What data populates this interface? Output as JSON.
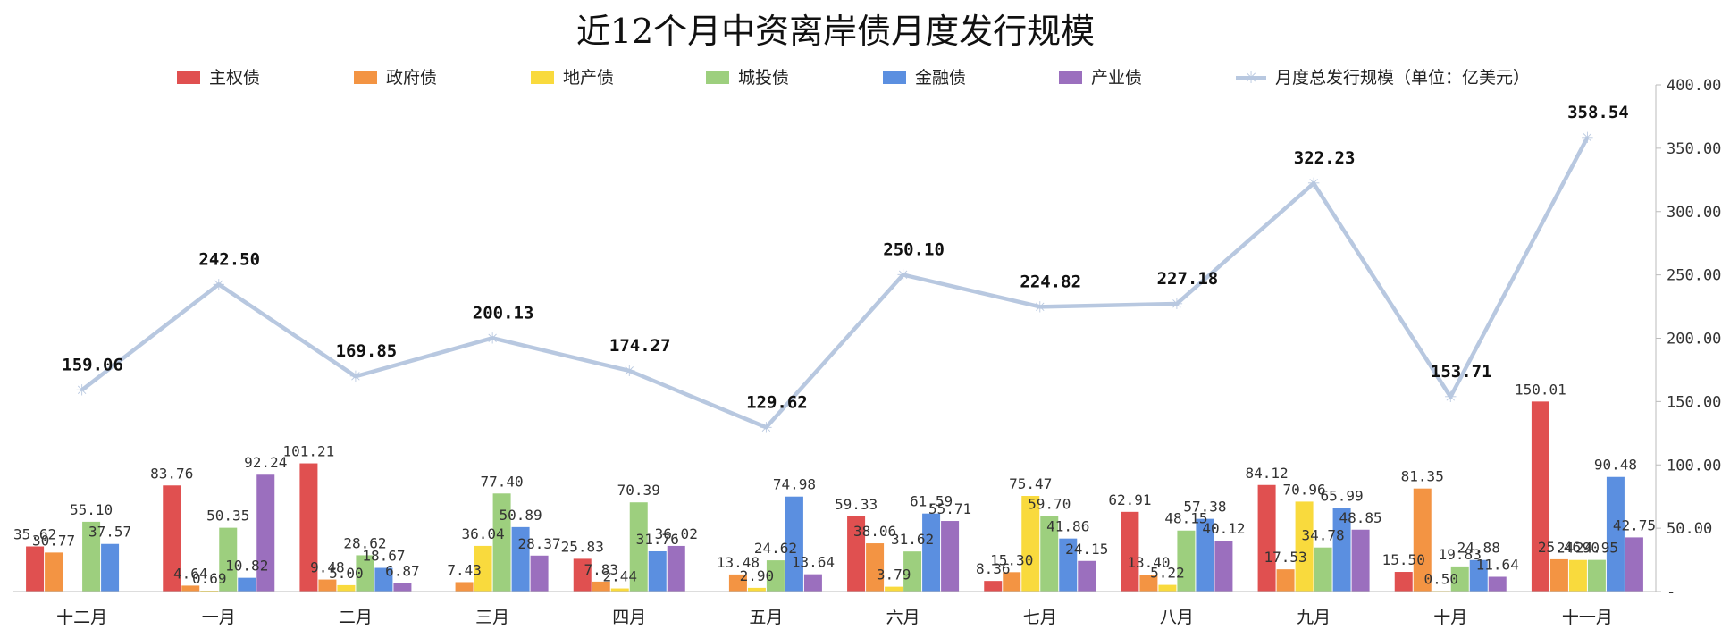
{
  "chart_data": {
    "type": "bar",
    "title": "近12个月中资离岸债月度发行规模",
    "categories": [
      "十二月",
      "一月",
      "二月",
      "三月",
      "四月",
      "五月",
      "六月",
      "七月",
      "八月",
      "九月",
      "十月",
      "十一月"
    ],
    "series": [
      {
        "name": "主权债",
        "color": "#e05050",
        "values": [
          35.62,
          83.76,
          101.21,
          null,
          25.83,
          null,
          59.33,
          8.36,
          62.91,
          84.12,
          15.5,
          150.01
        ],
        "labels": [
          "35.62",
          "83.76",
          "101.21",
          "",
          "25.83",
          "",
          "59.33",
          "8.36",
          "62.91",
          "84.12",
          "15.50",
          "150.01"
        ]
      },
      {
        "name": "政府债",
        "color": "#f39443",
        "values": [
          30.77,
          4.64,
          9.48,
          7.43,
          7.83,
          13.48,
          38.06,
          15.3,
          13.4,
          17.53,
          81.35,
          25.46
        ],
        "labels": [
          "30.77",
          "4.64",
          "9.48",
          "7.43",
          "7.83",
          "13.48",
          "38.06",
          "15.30",
          "13.40",
          "17.53",
          "81.35",
          "25.46"
        ]
      },
      {
        "name": "地产债",
        "color": "#f9da3d",
        "values": [
          null,
          0.69,
          5.0,
          36.04,
          2.44,
          2.9,
          3.79,
          75.47,
          5.22,
          70.96,
          0.5,
          24.9
        ],
        "labels": [
          "",
          "0.69",
          "5.00",
          "36.04",
          "2.44",
          "2.90",
          "3.79",
          "75.47",
          "5.22",
          "70.96",
          "0.50",
          "24.90"
        ]
      },
      {
        "name": "城投债",
        "color": "#9dcf7e",
        "values": [
          55.1,
          50.35,
          28.62,
          77.4,
          70.39,
          24.62,
          31.62,
          59.7,
          48.15,
          34.78,
          19.83,
          24.95
        ],
        "labels": [
          "55.10",
          "50.35",
          "28.62",
          "77.40",
          "70.39",
          "24.62",
          "31.62",
          "59.70",
          "48.15",
          "34.78",
          "19.83",
          "24.95"
        ]
      },
      {
        "name": "金融债",
        "color": "#5b8fe0",
        "values": [
          37.57,
          10.82,
          18.67,
          50.89,
          31.76,
          74.98,
          61.59,
          41.86,
          57.38,
          65.99,
          24.88,
          90.48
        ],
        "labels": [
          "37.57",
          "10.82",
          "18.67",
          "50.89",
          "31.76",
          "74.98",
          "61.59",
          "41.86",
          "57.38",
          "65.99",
          "24.88",
          "90.48"
        ]
      },
      {
        "name": "产业债",
        "color": "#9b6fbe",
        "values": [
          null,
          92.24,
          6.87,
          28.37,
          36.02,
          13.64,
          55.71,
          24.15,
          40.12,
          48.85,
          11.64,
          42.75
        ],
        "labels": [
          "",
          "92.24",
          "6.87",
          "28.37",
          "36.02",
          "13.64",
          "55.71",
          "24.15",
          "40.12",
          "48.85",
          "11.64",
          "42.75"
        ]
      }
    ],
    "line": {
      "name": "月度总发行规模（单位：亿美元）",
      "color": "#b8c8e0",
      "values": [
        159.06,
        242.5,
        169.85,
        200.13,
        174.27,
        129.62,
        250.1,
        224.82,
        227.18,
        322.23,
        153.71,
        358.54
      ],
      "labels": [
        "159.06",
        "242.50",
        "169.85",
        "200.13",
        "174.27",
        "129.62",
        "250.10",
        "224.82",
        "227.18",
        "322.23",
        "153.71",
        "358.54"
      ]
    },
    "yaxis": {
      "position": "right",
      "ylim": [
        0,
        400
      ],
      "ticks": [
        "-",
        "50.00",
        "100.00",
        "150.00",
        "200.00",
        "250.00",
        "300.00",
        "350.00",
        "400.00"
      ]
    },
    "legend": {
      "placement": "top"
    },
    "grid": false
  }
}
